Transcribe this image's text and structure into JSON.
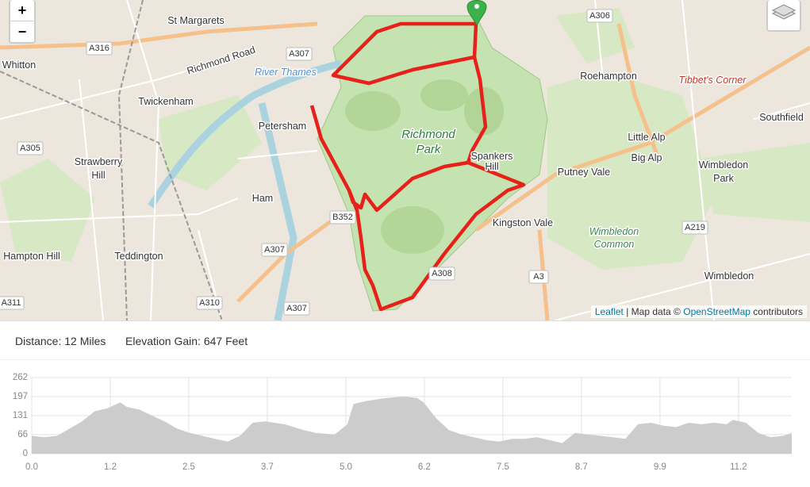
{
  "map": {
    "zoom_in": "+",
    "zoom_out": "−",
    "labels": [
      "St Margarets",
      "Whitton",
      "Twickenham",
      "River Thames",
      "Richmond Road",
      "Petersham",
      "Richmond",
      "Park",
      "Spankers",
      "Hill",
      "Roehampton",
      "Tibbet's Corner",
      "Southfield",
      "Putney Vale",
      "Little Alp",
      "Big Alp",
      "Wimbledon",
      "Park",
      "Strawberry",
      "Hill",
      "Ham",
      "Kingston Vale",
      "Wimbledon",
      "Common",
      "Hampton Hill",
      "Teddington",
      "Wimbledon"
    ],
    "roads": [
      "A316",
      "A306",
      "A307",
      "A305",
      "B352",
      "A307",
      "A308",
      "A3",
      "A219",
      "A310",
      "A307",
      "A311"
    ],
    "attribution": {
      "leaflet": "Leaflet",
      "map_data": "| Map data ©",
      "osm": "OpenStreetMap",
      "contributors": "contributors"
    }
  },
  "stats": {
    "distance": "Distance: 12 Miles",
    "elevation_gain": "Elevation Gain: 647 Feet"
  },
  "chart_data": {
    "type": "area",
    "color": "#cccccc",
    "x": [
      0,
      0.2,
      0.4,
      0.6,
      0.8,
      1.0,
      1.2,
      1.4,
      1.5,
      1.7,
      1.9,
      2.1,
      2.3,
      2.5,
      2.7,
      2.9,
      3.1,
      3.3,
      3.5,
      3.7,
      4.0,
      4.3,
      4.5,
      4.8,
      5.0,
      5.1,
      5.3,
      5.6,
      5.9,
      6.1,
      6.2,
      6.4,
      6.6,
      6.8,
      7.0,
      7.2,
      7.4,
      7.6,
      7.8,
      8.0,
      8.2,
      8.4,
      8.6,
      8.8,
      9.0,
      9.2,
      9.4,
      9.6,
      9.8,
      10.0,
      10.2,
      10.4,
      10.6,
      10.8,
      11.0,
      11.1,
      11.3,
      11.5,
      11.7,
      11.9,
      12.03
    ],
    "values": [
      60,
      55,
      60,
      85,
      110,
      145,
      155,
      175,
      160,
      150,
      130,
      110,
      85,
      70,
      60,
      50,
      40,
      60,
      105,
      110,
      100,
      80,
      70,
      65,
      100,
      170,
      180,
      190,
      195,
      190,
      175,
      120,
      80,
      65,
      55,
      45,
      40,
      50,
      50,
      55,
      45,
      35,
      70,
      65,
      60,
      55,
      50,
      100,
      105,
      95,
      90,
      105,
      100,
      105,
      100,
      115,
      105,
      70,
      55,
      60,
      70
    ],
    "xlim": [
      0,
      12.03
    ],
    "ylim": [
      0,
      262
    ],
    "xticks": [
      {
        "value": 0,
        "label": "0.0"
      },
      {
        "value": 1.243,
        "label": "1.2"
      },
      {
        "value": 2.486,
        "label": "2.5"
      },
      {
        "value": 3.729,
        "label": "3.7"
      },
      {
        "value": 4.972,
        "label": "5.0"
      },
      {
        "value": 6.215,
        "label": "6.2"
      },
      {
        "value": 7.458,
        "label": "7.5"
      },
      {
        "value": 8.701,
        "label": "8.7"
      },
      {
        "value": 9.944,
        "label": "9.9"
      },
      {
        "value": 11.187,
        "label": "11.2"
      }
    ],
    "yticks": [
      0,
      66,
      131,
      197,
      262
    ],
    "grid": true
  }
}
